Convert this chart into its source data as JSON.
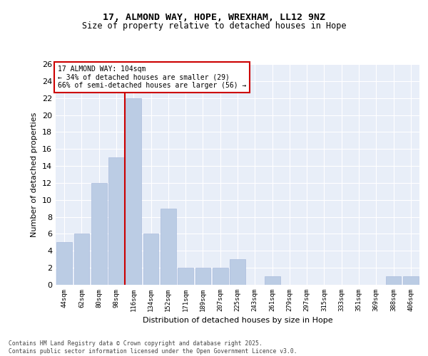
{
  "title1": "17, ALMOND WAY, HOPE, WREXHAM, LL12 9NZ",
  "title2": "Size of property relative to detached houses in Hope",
  "xlabel": "Distribution of detached houses by size in Hope",
  "ylabel": "Number of detached properties",
  "categories": [
    "44sqm",
    "62sqm",
    "80sqm",
    "98sqm",
    "116sqm",
    "134sqm",
    "152sqm",
    "171sqm",
    "189sqm",
    "207sqm",
    "225sqm",
    "243sqm",
    "261sqm",
    "279sqm",
    "297sqm",
    "315sqm",
    "333sqm",
    "351sqm",
    "369sqm",
    "388sqm",
    "406sqm"
  ],
  "values": [
    5,
    6,
    12,
    15,
    22,
    6,
    9,
    2,
    2,
    2,
    3,
    0,
    1,
    0,
    0,
    0,
    0,
    0,
    0,
    1,
    1
  ],
  "bar_color": "#BBCCE4",
  "bar_edgecolor": "#AABBDD",
  "vline_color": "#CC0000",
  "vline_x": 3.5,
  "annotation_text": "17 ALMOND WAY: 104sqm\n← 34% of detached houses are smaller (29)\n66% of semi-detached houses are larger (56) →",
  "annotation_box_color": "#CC0000",
  "bg_color": "#E8EEF8",
  "grid_color": "#FFFFFF",
  "ylim": [
    0,
    26
  ],
  "yticks": [
    0,
    2,
    4,
    6,
    8,
    10,
    12,
    14,
    16,
    18,
    20,
    22,
    24,
    26
  ],
  "footer": "Contains HM Land Registry data © Crown copyright and database right 2025.\nContains public sector information licensed under the Open Government Licence v3.0."
}
